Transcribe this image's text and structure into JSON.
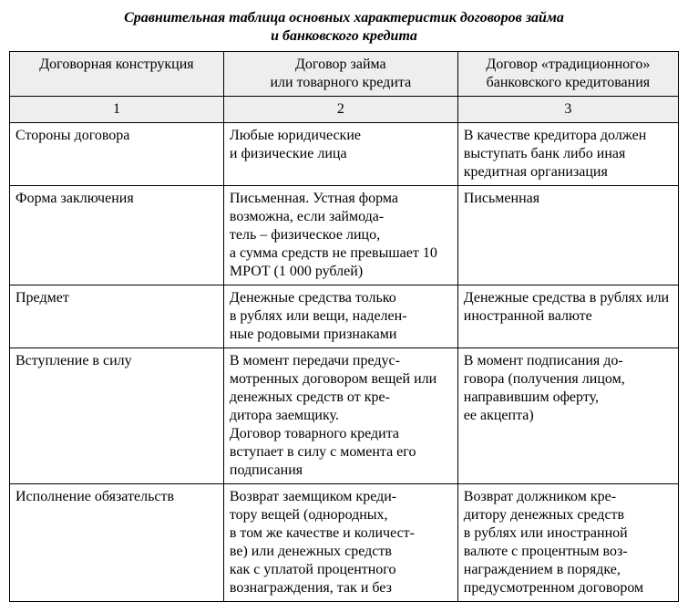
{
  "title_line1": "Сравнительная таблица основных характеристик договоров займа",
  "title_line2": "и банковского кредита",
  "columns": {
    "c1": "Договорная конструкция",
    "c2": "Договор займа\nили товарного кредита",
    "c3": "Договор «традиционного»\nбанковского кредитования"
  },
  "numbers": {
    "n1": "1",
    "n2": "2",
    "n3": "3"
  },
  "rows": [
    {
      "a": "Стороны договора",
      "b": "Любые юридические\nи физические лица",
      "c": "В качестве кредитора должен выступать банк либо иная кредитная организация"
    },
    {
      "a": "Форма заключения",
      "b": "Письменная. Устная форма возможна, если займода-\nтель – физическое лицо,\nа сумма средств не превышает 10 МРОТ (1 000 рублей)",
      "c": "Письменная"
    },
    {
      "a": "Предмет",
      "b": "Денежные средства только\nв рублях или вещи, наделен-\nные родовыми признаками",
      "c": "Денежные средства в рублях или иностранной валюте"
    },
    {
      "a": "Вступление в силу",
      "b": "В момент передачи предус-\nмотренных договором вещей или денежных средств от кре-\nдитора заемщику.\nДоговор товарного кредита вступает в силу с момента его подписания",
      "c": "В момент подписания до-\nговора (получения лицом, направившим оферту,\nее акцепта)"
    },
    {
      "a": "Исполнение обязательств",
      "b": "Возврат заемщиком креди-\nтору вещей (однородных,\nв том же качестве и количест-\nве) или денежных средств\nкак с уплатой процентного вознаграждения, так и без",
      "c": "Возврат должником кре-\nдитору денежных средств\nв рублях или иностранной валюте с процентным воз-\nнаграждением в порядке, предусмотренном договором"
    }
  ]
}
